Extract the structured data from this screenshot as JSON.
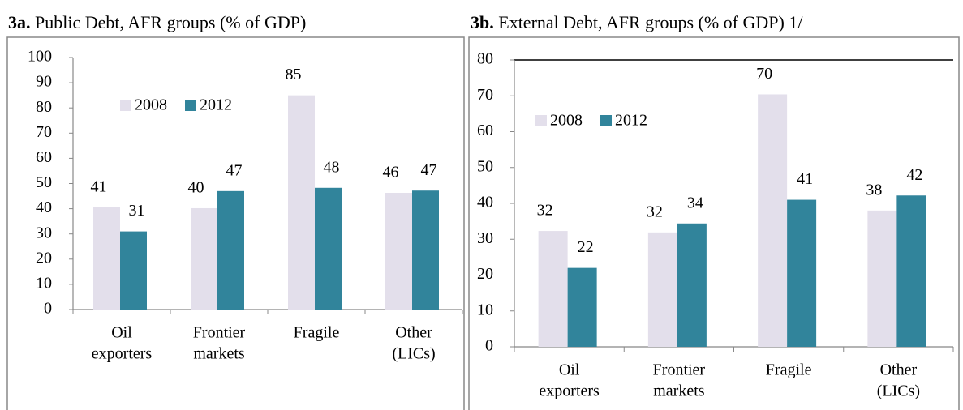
{
  "chart_data": [
    {
      "type": "bar",
      "label": "3a.",
      "title": "Public Debt, AFR groups (% of GDP)",
      "categories": [
        [
          "Oil",
          "exporters"
        ],
        [
          "Frontier",
          "markets"
        ],
        [
          "Fragile"
        ],
        [
          "Other",
          "(LICs)"
        ]
      ],
      "series": [
        {
          "name": "2008",
          "color": "#e3dfeb",
          "values": [
            40.6,
            40.2,
            85,
            46.3
          ],
          "value_labels": [
            "41",
            "40",
            "85",
            "46"
          ]
        },
        {
          "name": "2012",
          "color": "#31849b",
          "values": [
            31,
            47,
            48.3,
            47.2
          ],
          "value_labels": [
            "31",
            "47",
            "48",
            "47"
          ]
        }
      ],
      "ylim": [
        0,
        100
      ],
      "yticks": [
        0,
        10,
        20,
        30,
        40,
        50,
        60,
        70,
        80,
        90,
        100
      ]
    },
    {
      "type": "bar",
      "label": "3b.",
      "title": "External Debt, AFR groups (% of GDP) 1/",
      "categories": [
        [
          "Oil",
          "exporters"
        ],
        [
          "Frontier",
          "markets"
        ],
        [
          "Fragile"
        ],
        [
          "Other",
          "(LICs)"
        ]
      ],
      "series": [
        {
          "name": "2008",
          "color": "#e3dfeb",
          "values": [
            32.3,
            31.9,
            70.4,
            38
          ],
          "value_labels": [
            "32",
            "32",
            "70",
            "38"
          ]
        },
        {
          "name": "2012",
          "color": "#31849b",
          "values": [
            22,
            34.4,
            41,
            42.2
          ],
          "value_labels": [
            "22",
            "34",
            "41",
            "42"
          ]
        }
      ],
      "ylim": [
        0,
        80
      ],
      "yticks": [
        0,
        10,
        20,
        30,
        40,
        50,
        60,
        70,
        80
      ]
    }
  ]
}
